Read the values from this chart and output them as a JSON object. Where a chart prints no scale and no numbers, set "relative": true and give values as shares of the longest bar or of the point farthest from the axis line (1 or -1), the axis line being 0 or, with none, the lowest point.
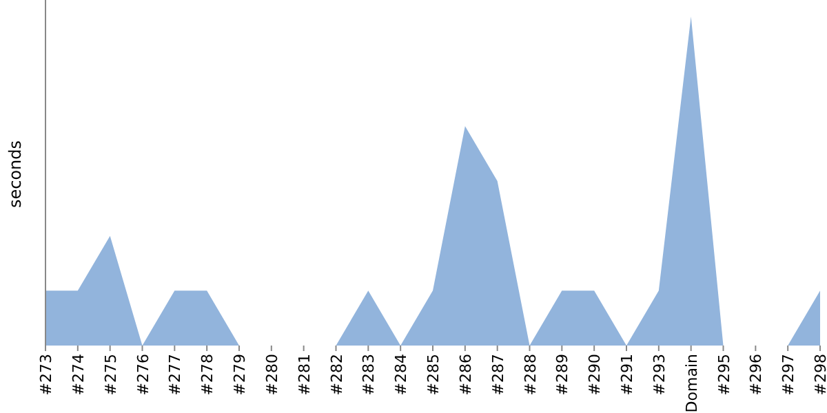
{
  "chart_data": {
    "type": "area",
    "ylabel": "seconds",
    "relative": true,
    "categories": [
      "#273",
      "#274",
      "#275",
      "#276",
      "#277",
      "#278",
      "#279",
      "#280",
      "#281",
      "#282",
      "#283",
      "#284",
      "#285",
      "#286",
      "#287",
      "#288",
      "#289",
      "#290",
      "#291",
      "#293",
      "Domain",
      "#295",
      "#296",
      "#297",
      "#298"
    ],
    "series": [
      {
        "color": "#92b4dc",
        "values": [
          0.167,
          0.167,
          0.333,
          0,
          0.167,
          0.167,
          0,
          0,
          0,
          0,
          0.167,
          0,
          0.167,
          0.667,
          0.5,
          0,
          0.167,
          0.167,
          0,
          0.167,
          1,
          0,
          0,
          0,
          0.167
        ]
      }
    ]
  }
}
